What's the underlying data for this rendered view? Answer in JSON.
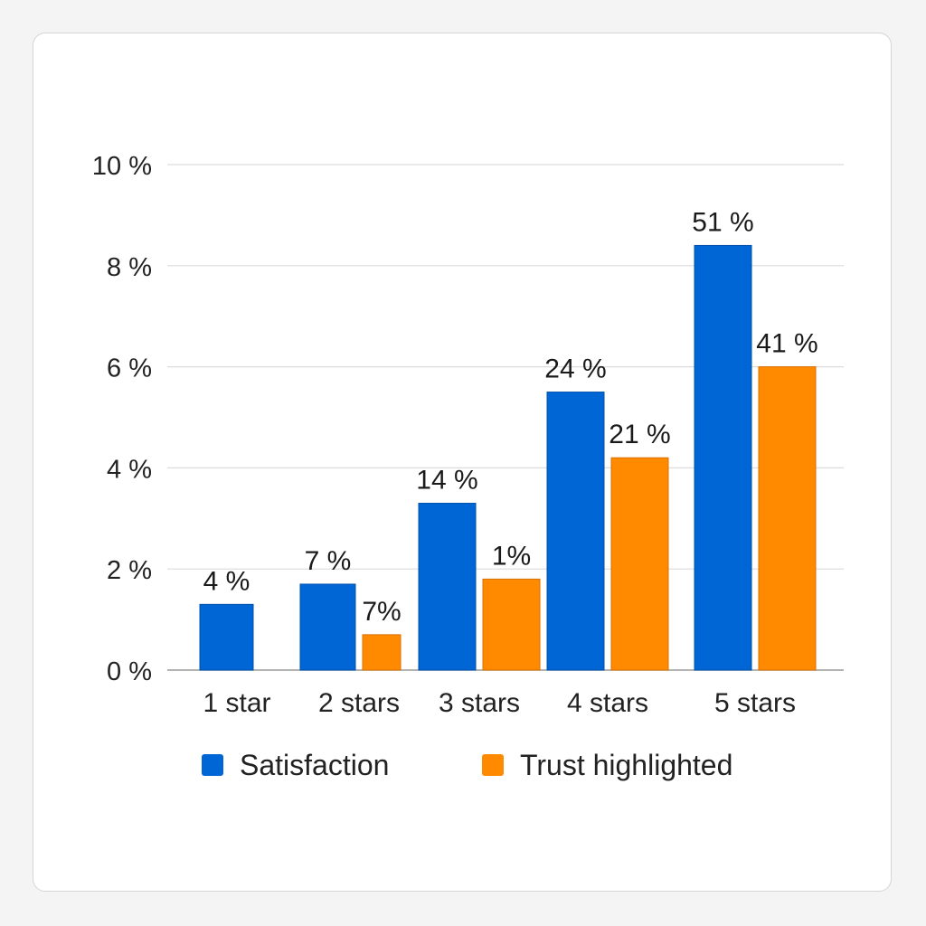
{
  "chart_data": {
    "type": "bar",
    "categories": [
      "1 star",
      "2 stars",
      "3 stars",
      "4 stars",
      "5 stars"
    ],
    "yticks": [
      "0 %",
      "2 %",
      "4 %",
      "6 %",
      "8 %",
      "10 %"
    ],
    "ylim": [
      0,
      10
    ],
    "grid": true,
    "legend_position": "bottom",
    "series": [
      {
        "name": "Satisfaction",
        "color": "#0066d6",
        "values": [
          1.3,
          1.7,
          3.3,
          5.5,
          8.4
        ],
        "labels": [
          "4 %",
          "7 %",
          "14 %",
          "24 %",
          "51 %"
        ]
      },
      {
        "name": "Trust highlighted",
        "color": "#ff8a00",
        "values": [
          null,
          0.7,
          1.8,
          4.2,
          6.0
        ],
        "labels": [
          null,
          "7%",
          "1%",
          "21 %",
          "41 %"
        ]
      }
    ]
  }
}
